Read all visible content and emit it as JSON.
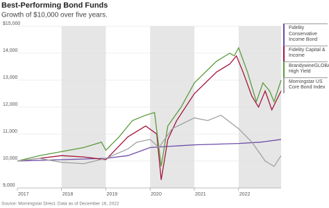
{
  "chart_data": {
    "type": "line",
    "title": "Best-Performing Bond Funds",
    "subtitle": "Growth of $10,000 over five years.",
    "source": "Source: Morningstar Direct. Data as of December 16, 2022",
    "xlim": [
      2017,
      2022.96
    ],
    "xticks": [
      2017,
      2018,
      2019,
      2020,
      2021,
      2022
    ],
    "ylim": [
      9000,
      15000
    ],
    "yticks": [
      {
        "value": 9000,
        "label": "9,000"
      },
      {
        "value": 10000,
        "label": "10,000"
      },
      {
        "value": 11000,
        "label": "11,000"
      },
      {
        "value": 12000,
        "label": "12,000"
      },
      {
        "value": 13000,
        "label": "13,000"
      },
      {
        "value": 14000,
        "label": "14,000"
      },
      {
        "value": 15000,
        "label": "$15,000"
      }
    ],
    "series": [
      {
        "name": "Fidelity Conservative Income Bond",
        "color": "#6b4aa8",
        "x": [
          2017,
          2019,
          2019.5,
          2020,
          2021,
          2022,
          2022.5,
          2022.96
        ],
        "values": [
          10000,
          10100,
          10200,
          10500,
          10600,
          10650,
          10700,
          10800
        ]
      },
      {
        "name": "Fidelity Capital & Income",
        "color": "#a3143c",
        "x": [
          2017,
          2017.5,
          2018,
          2018.5,
          2019,
          2019.5,
          2019.9,
          2020.15,
          2020.25,
          2020.4,
          2020.6,
          2021,
          2021.5,
          2021.8,
          2021.95,
          2022.1,
          2022.3,
          2022.45,
          2022.6,
          2022.75,
          2022.96
        ],
        "values": [
          10000,
          10100,
          10200,
          10150,
          10050,
          10900,
          11300,
          11000,
          9300,
          10800,
          11500,
          12500,
          13300,
          13600,
          13900,
          13300,
          12400,
          12000,
          12600,
          11900,
          12600
        ]
      },
      {
        "name": "BrandywineGLOBAL High Yield",
        "color": "#5a9a3a",
        "x": [
          2017,
          2017.5,
          2018,
          2018.5,
          2018.9,
          2019,
          2019.3,
          2019.6,
          2019.9,
          2020.1,
          2020.25,
          2020.4,
          2020.7,
          2021,
          2021.5,
          2021.8,
          2021.9,
          2022,
          2022.2,
          2022.4,
          2022.55,
          2022.7,
          2022.8,
          2022.96
        ],
        "values": [
          10000,
          10200,
          10350,
          10500,
          10700,
          10400,
          10900,
          11500,
          11700,
          11800,
          9800,
          11300,
          12000,
          12900,
          13700,
          14000,
          13900,
          14200,
          13300,
          12200,
          12900,
          12600,
          12200,
          13000
        ]
      },
      {
        "name": "Morningstar US Core Bond Index",
        "color": "#a0a0a0",
        "x": [
          2017,
          2017.5,
          2018,
          2018.5,
          2019,
          2019.5,
          2019.7,
          2020,
          2020.2,
          2020.5,
          2021,
          2021.3,
          2021.6,
          2022,
          2022.3,
          2022.6,
          2022.8,
          2022.96
        ],
        "values": [
          10000,
          10100,
          9950,
          9900,
          10100,
          10450,
          10700,
          10800,
          10500,
          11200,
          11600,
          11500,
          11700,
          11200,
          10700,
          10000,
          9800,
          10200
        ]
      }
    ]
  }
}
